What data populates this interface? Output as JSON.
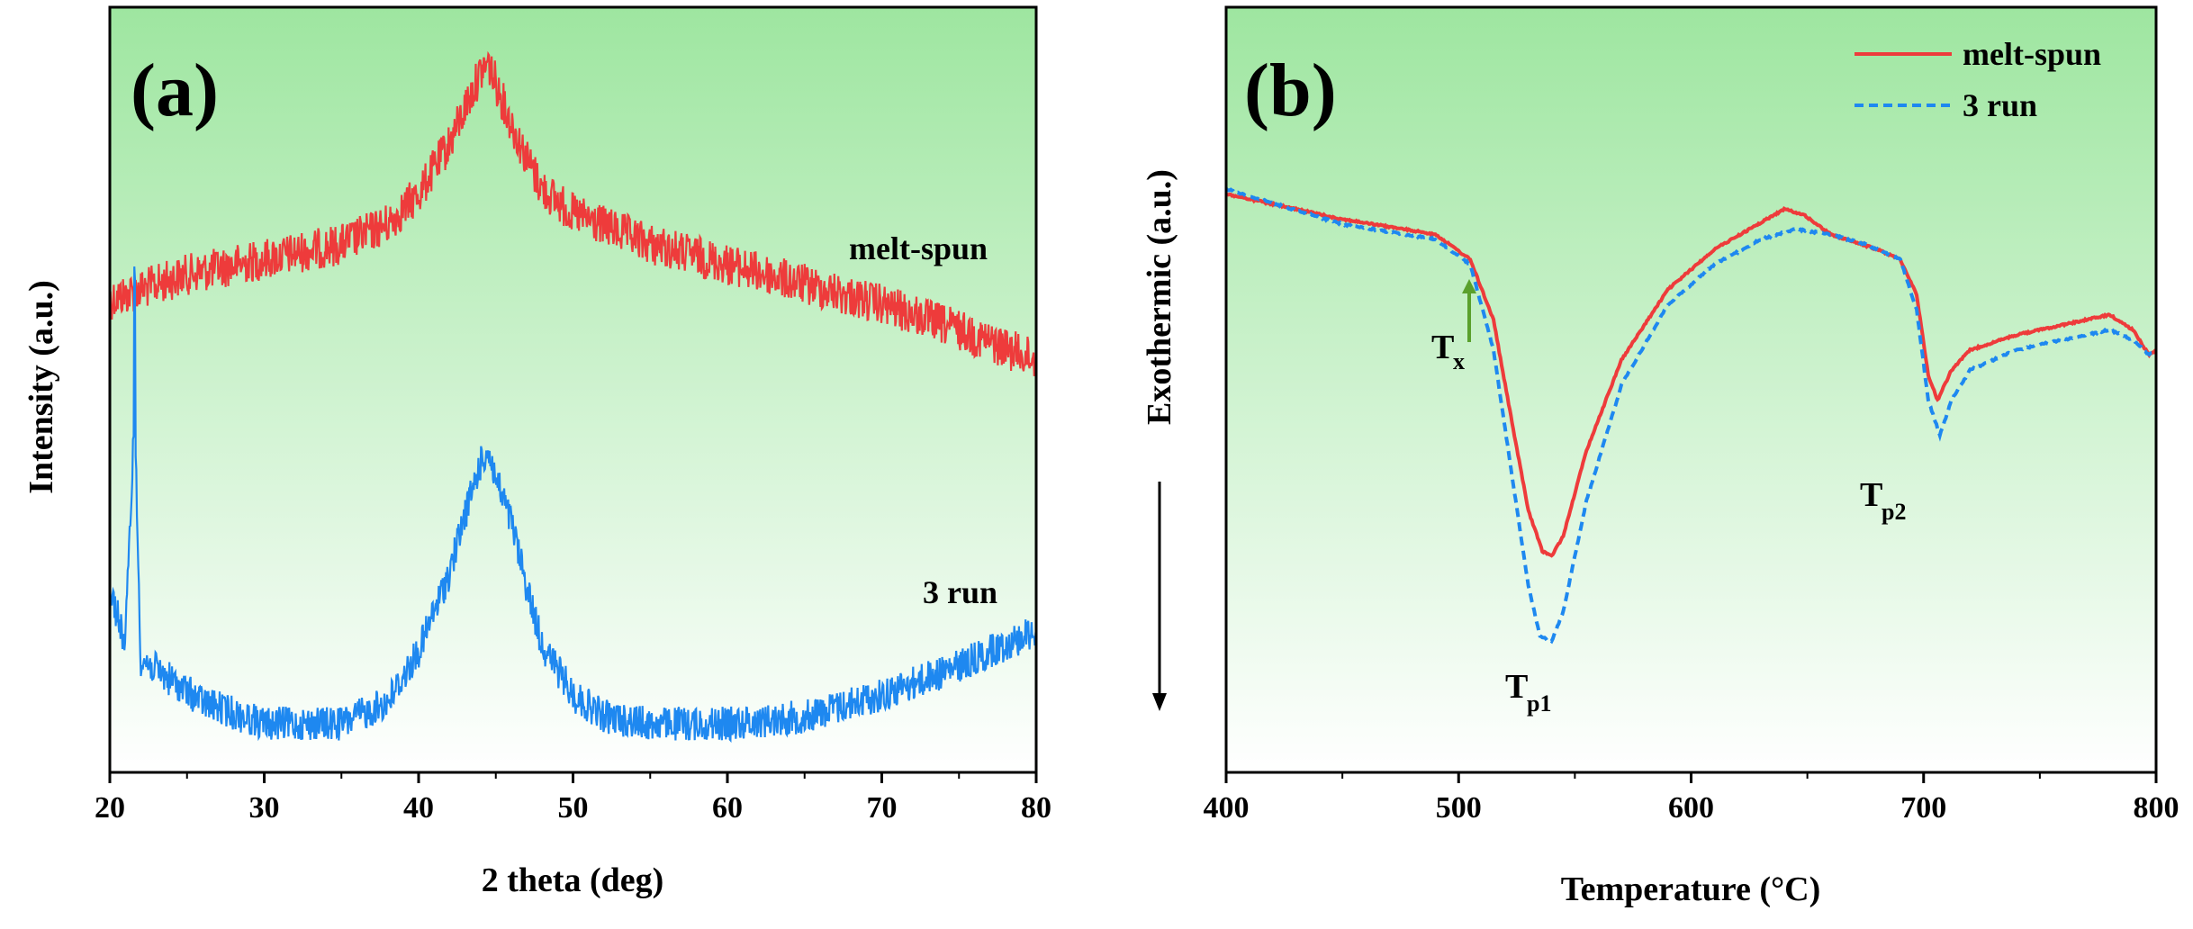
{
  "panels": {
    "a": {
      "label": "(a)",
      "xlabel": "2 theta (deg)",
      "ylabel": "Intensity (a.u.)"
    },
    "b": {
      "label": "(b)",
      "xlabel": "Temperature (°C)",
      "ylabel": "Exothermic (a.u.)"
    }
  },
  "colors": {
    "melt_spun": "#ee3b3b",
    "three_run": "#1e88f0",
    "background_top": "#9ee6a0",
    "background_bottom": "#ffffff",
    "arrow_tx": "#5aa02c"
  },
  "chart_data": [
    {
      "type": "line",
      "xlabel": "2 theta (deg)",
      "ylabel": "Intensity (a.u.)",
      "xlim": [
        20,
        80
      ],
      "xticks": [
        "20",
        "30",
        "40",
        "50",
        "60",
        "70",
        "80"
      ],
      "grid": false,
      "series": [
        {
          "name": "melt-spun",
          "x": [
            20,
            25,
            30,
            35,
            38,
            40,
            42,
            43,
            44,
            44.5,
            45,
            46,
            47,
            48,
            50,
            55,
            60,
            65,
            70,
            75,
            80
          ],
          "y": [
            0.55,
            0.6,
            0.63,
            0.66,
            0.7,
            0.76,
            0.86,
            0.93,
            1.0,
            1.02,
            0.98,
            0.9,
            0.83,
            0.77,
            0.72,
            0.66,
            0.62,
            0.58,
            0.54,
            0.49,
            0.43
          ]
        },
        {
          "name": "3 run",
          "x": [
            20,
            21,
            21.6,
            22,
            24,
            26,
            30,
            35,
            38,
            40,
            42,
            43,
            44,
            44.5,
            45,
            46,
            47,
            48,
            50,
            52,
            55,
            60,
            65,
            70,
            75,
            80
          ],
          "y": [
            0.26,
            0.18,
            0.5,
            0.16,
            0.13,
            0.1,
            0.07,
            0.07,
            0.1,
            0.17,
            0.28,
            0.36,
            0.43,
            0.45,
            0.41,
            0.35,
            0.26,
            0.18,
            0.11,
            0.08,
            0.07,
            0.07,
            0.08,
            0.11,
            0.15,
            0.2
          ]
        }
      ]
    },
    {
      "type": "line",
      "xlabel": "Temperature (°C)",
      "ylabel": "Exothermic (a.u.)",
      "xlim": [
        400,
        800
      ],
      "xticks": [
        "400",
        "500",
        "600",
        "700",
        "800"
      ],
      "legend": "top-right",
      "grid": false,
      "annotations": [
        {
          "text": "T",
          "sub": "x",
          "x": 505
        },
        {
          "text": "T",
          "sub": "p1",
          "x": 540
        },
        {
          "text": "T",
          "sub": "p2",
          "x": 706
        }
      ],
      "series": [
        {
          "name": "melt-spun",
          "x": [
            400,
            450,
            490,
            505,
            515,
            522,
            530,
            536,
            540,
            545,
            555,
            570,
            590,
            610,
            625,
            640,
            648,
            660,
            680,
            690,
            697,
            702,
            706,
            712,
            720,
            740,
            760,
            780,
            790,
            797,
            800
          ],
          "y": [
            0.93,
            0.88,
            0.85,
            0.8,
            0.68,
            0.5,
            0.3,
            0.22,
            0.21,
            0.25,
            0.42,
            0.6,
            0.74,
            0.82,
            0.86,
            0.9,
            0.89,
            0.85,
            0.82,
            0.8,
            0.73,
            0.57,
            0.52,
            0.58,
            0.62,
            0.65,
            0.67,
            0.69,
            0.66,
            0.61,
            0.62
          ]
        },
        {
          "name": "3 run",
          "x": [
            400,
            450,
            490,
            505,
            515,
            522,
            530,
            535,
            540,
            545,
            555,
            570,
            590,
            610,
            630,
            645,
            660,
            675,
            690,
            697,
            702,
            707,
            712,
            720,
            740,
            760,
            780,
            790,
            797,
            800
          ],
          "y": [
            0.94,
            0.87,
            0.84,
            0.79,
            0.62,
            0.4,
            0.15,
            0.05,
            0.04,
            0.1,
            0.32,
            0.55,
            0.71,
            0.79,
            0.84,
            0.86,
            0.85,
            0.83,
            0.8,
            0.7,
            0.52,
            0.45,
            0.52,
            0.58,
            0.62,
            0.64,
            0.66,
            0.64,
            0.61,
            0.62
          ]
        }
      ]
    }
  ]
}
